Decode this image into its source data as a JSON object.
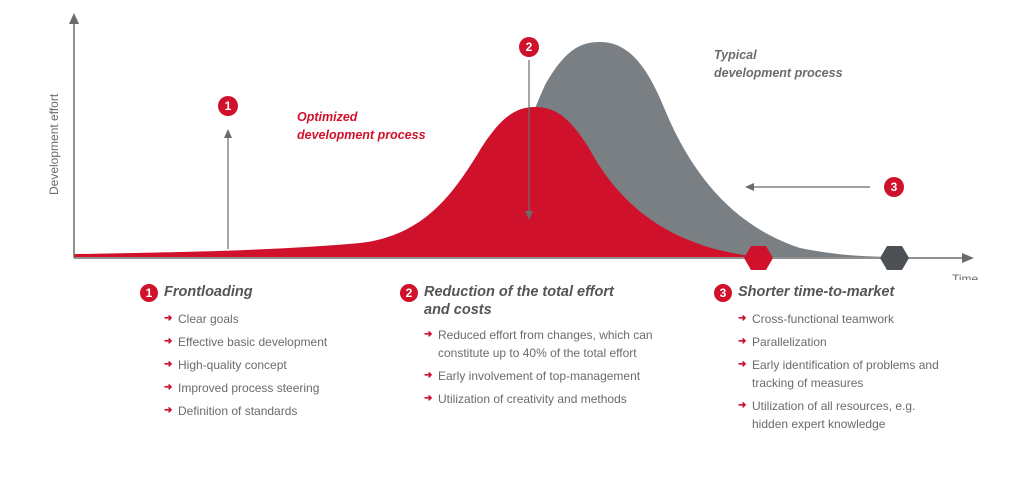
{
  "diagram": {
    "y_axis_label": "Development effort",
    "x_axis_label": "Time",
    "optimized_label_line1": "Optimized",
    "optimized_label_line2": "development process",
    "typical_label_line1": "Typical",
    "typical_label_line2": "development process",
    "markers": [
      "1",
      "2",
      "3"
    ],
    "colors": {
      "optimized": "#d0112b",
      "typical": "#7a7f84",
      "axis": "#6b6b6b",
      "hex_typical_end": "#4d5054"
    }
  },
  "columns": [
    {
      "number": "1",
      "title_line1": "Frontloading",
      "title_line2": "",
      "items": [
        "Clear goals",
        "Effective basic development",
        "High-quality concept",
        "Improved process steering",
        "Definition of standards"
      ]
    },
    {
      "number": "2",
      "title_line1": "Reduction of the total effort",
      "title_line2": "and costs",
      "items": [
        "Reduced effort from changes, which can constitute up to 40% of the total effort",
        "Early involvement of  top-management",
        "Utilization of creativity and methods"
      ]
    },
    {
      "number": "3",
      "title_line1": "Shorter time-to-market",
      "title_line2": "",
      "items": [
        "Cross-functional teamwork",
        "Parallelization",
        "Early identification of problems and tracking of measures",
        "Utilization of all resources, e.g. hidden expert knowledge"
      ]
    }
  ]
}
